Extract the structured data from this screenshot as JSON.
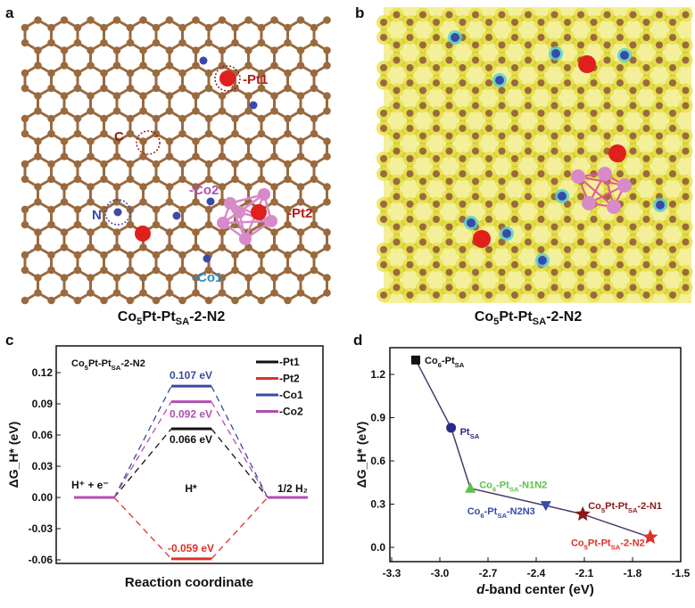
{
  "panels": {
    "a": {
      "letter": "a",
      "title": [
        "Co",
        "5",
        "Pt-Pt",
        "SA",
        "-2-N2"
      ],
      "labels": {
        "c": "C",
        "pt1": "-Pt1",
        "n": "N",
        "co2": "-Co2",
        "pt2": "-Pt2",
        "co1": "-Co1"
      }
    },
    "b": {
      "letter": "b",
      "title": [
        "Co",
        "5",
        "Pt-Pt",
        "SA",
        "-2-N2"
      ]
    },
    "c": {
      "letter": "c"
    },
    "d": {
      "letter": "d"
    }
  },
  "colors": {
    "carbon": "#9a6a3e",
    "pt": "#e0201c",
    "n": "#3a4aa8",
    "co": "#d88ac8",
    "density": "#e6e24a",
    "density_cyan": "#4fd0d8"
  },
  "chart_data": [
    {
      "type": "line",
      "panel": "c",
      "title": [
        "Co",
        "5",
        "Pt-Pt",
        "SA",
        "-2-N2"
      ],
      "xlabel": "Reaction coordinate",
      "ylabel": "ΔG_H* (eV)",
      "ylim": [
        -0.06,
        0.13
      ],
      "yticks": [
        "0.12",
        "0.09",
        "0.06",
        "0.03",
        "0.00",
        "-0.03",
        "-0.06"
      ],
      "ytick_values": [
        0.12,
        0.09,
        0.06,
        0.03,
        0.0,
        -0.03,
        -0.06
      ],
      "states": [
        "H⁺ + e⁻",
        "H*",
        "1/2 H₂"
      ],
      "legend_position": "top-right",
      "series": [
        {
          "name": "-Pt1",
          "color": "#111111",
          "values": [
            0,
            0.066,
            0
          ],
          "label": "0.066 eV"
        },
        {
          "name": "-Pt2",
          "color": "#e0302a",
          "values": [
            0,
            -0.059,
            0
          ],
          "label": "-0.059 eV"
        },
        {
          "name": "-Co1",
          "color": "#3a4aa0",
          "values": [
            0,
            0.107,
            0
          ],
          "label": "0.107 eV"
        },
        {
          "name": "-Co2",
          "color": "#b04fb0",
          "values": [
            0,
            0.092,
            0
          ],
          "label": "0.092 eV"
        }
      ]
    },
    {
      "type": "scatter",
      "panel": "d",
      "xlabel": [
        "d",
        "-band center (eV)"
      ],
      "ylabel": "ΔG_H* (eV)",
      "xlim": [
        -3.3,
        -1.5
      ],
      "ylim": [
        -0.1,
        1.35
      ],
      "xticks": [
        "-3.3",
        "-3.0",
        "-2.7",
        "-2.4",
        "-2.1",
        "-1.8",
        "-1.5"
      ],
      "xtick_values": [
        -3.3,
        -3.0,
        -2.7,
        -2.4,
        -2.1,
        -1.8,
        -1.5
      ],
      "yticks": [
        "1.2",
        "0.9",
        "0.6",
        "0.3",
        "0.0"
      ],
      "ytick_values": [
        1.2,
        0.9,
        0.6,
        0.3,
        0.0
      ],
      "points": [
        {
          "name": [
            "Co",
            "6",
            "-Pt",
            "SA",
            ""
          ],
          "x": -3.15,
          "y": 1.3,
          "marker": "square",
          "color": "#111111"
        },
        {
          "name": [
            "Pt",
            "",
            "",
            "SA",
            ""
          ],
          "x": -2.93,
          "y": 0.83,
          "marker": "circle",
          "color": "#2a2a8a"
        },
        {
          "name": [
            "Co",
            "6",
            "-Pt",
            "SA",
            "-N1N2"
          ],
          "x": -2.81,
          "y": 0.41,
          "marker": "triangle-up",
          "color": "#5cc24a"
        },
        {
          "name": [
            "Co",
            "6",
            "-Pt",
            "SA",
            "-N2N3"
          ],
          "x": -2.34,
          "y": 0.29,
          "marker": "triangle-down",
          "color": "#3a4aa8"
        },
        {
          "name": [
            "Co",
            "5",
            "Pt-Pt",
            "SA",
            "-2-N1"
          ],
          "x": -2.11,
          "y": 0.23,
          "marker": "star",
          "color": "#8a1a1a"
        },
        {
          "name": [
            "Co",
            "5",
            "Pt-Pt",
            "SA",
            "-2-N2"
          ],
          "x": -1.69,
          "y": 0.07,
          "marker": "star",
          "color": "#e0302a"
        }
      ]
    }
  ]
}
